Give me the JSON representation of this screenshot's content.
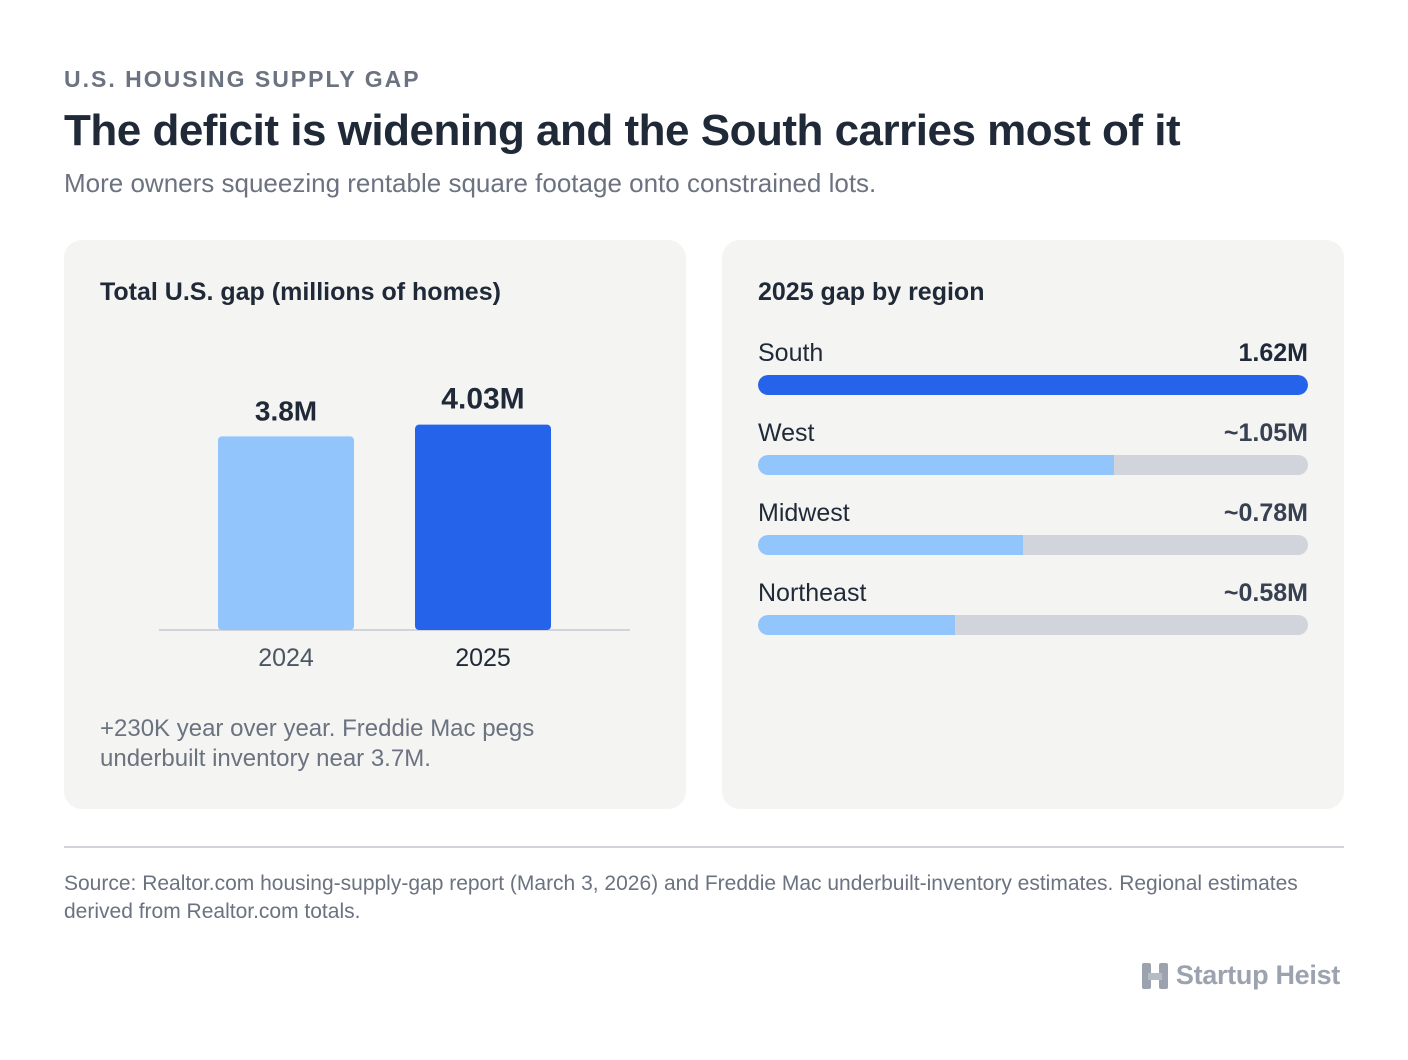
{
  "header": {
    "eyebrow": "U.S. HOUSING SUPPLY GAP",
    "title": "The deficit is widening and the South carries most of it",
    "subtitle": "More owners squeezing rentable square footage onto constrained lots."
  },
  "chart_data": [
    {
      "type": "bar",
      "title": "Total U.S. gap (millions of homes)",
      "categories": [
        "2024",
        "2025"
      ],
      "values": [
        3.8,
        4.03
      ],
      "data_labels": [
        "3.8M",
        "4.03M"
      ],
      "colors": [
        "#93c5fd",
        "#2563eb"
      ],
      "ylim": [
        0,
        4.2
      ],
      "note": "+230K year over year. Freddie Mac pegs underbuilt inventory near 3.7M."
    },
    {
      "type": "bar",
      "orientation": "horizontal",
      "title": "2025 gap by region",
      "categories": [
        "South",
        "West",
        "Midwest",
        "Northeast"
      ],
      "values": [
        1.62,
        1.05,
        0.78,
        0.58
      ],
      "data_labels": [
        "1.62M",
        "~1.05M",
        "~0.78M",
        "~0.58M"
      ],
      "colors": [
        "#2563eb",
        "#93c5fd",
        "#93c5fd",
        "#93c5fd"
      ],
      "xlim": [
        0,
        1.62
      ]
    }
  ],
  "footer": {
    "source": "Source: Realtor.com housing-supply-gap report (March 3, 2026) and Freddie Mac underbuilt-inventory estimates. Regional estimates derived from Realtor.com totals.",
    "brand_name": "Startup Heist",
    "brand_icon": "h-logo-icon"
  }
}
